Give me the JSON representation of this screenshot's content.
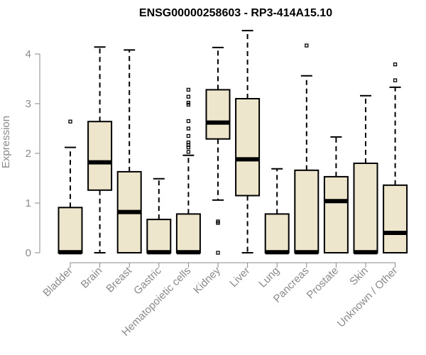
{
  "chart_data": {
    "type": "boxplot",
    "title": "ENSG00000258603 - RP3-414A15.10",
    "ylabel": "Expression",
    "xlabel": "",
    "ylim": [
      0,
      4.4
    ],
    "yticks": [
      0,
      1,
      2,
      3,
      4
    ],
    "box_fill": "#ede6cc",
    "categories": [
      "Bladder",
      "Brain",
      "Breast",
      "Gastric",
      "Hematopoietic cells",
      "Kidney",
      "Liver",
      "Lung",
      "Pancreas",
      "Prostate",
      "Skin",
      "Unknown / Other"
    ],
    "boxes": [
      {
        "min": 0,
        "q1": 0,
        "median": 0.01,
        "q3": 0.91,
        "max": 2.12,
        "outliers": [
          2.64
        ]
      },
      {
        "min": 0,
        "q1": 1.26,
        "median": 1.82,
        "q3": 2.64,
        "max": 4.14,
        "outliers": []
      },
      {
        "min": 0,
        "q1": 0,
        "median": 0.82,
        "q3": 1.63,
        "max": 4.08,
        "outliers": []
      },
      {
        "min": 0,
        "q1": 0,
        "median": 0.01,
        "q3": 0.67,
        "max": 1.49,
        "outliers": []
      },
      {
        "min": 0,
        "q1": 0,
        "median": 0.01,
        "q3": 0.78,
        "max": 1.96,
        "outliers": [
          2.03,
          2.12,
          2.17,
          2.22,
          2.35,
          2.5,
          2.65,
          2.98,
          3.02,
          3.14,
          3.28
        ]
      },
      {
        "min": 1.06,
        "q1": 2.29,
        "median": 2.62,
        "q3": 3.28,
        "max": 4.13,
        "outliers": [
          0.0,
          0.6,
          0.63
        ]
      },
      {
        "min": 0,
        "q1": 1.15,
        "median": 1.88,
        "q3": 3.1,
        "max": 4.47,
        "outliers": []
      },
      {
        "min": 0,
        "q1": 0,
        "median": 0.01,
        "q3": 0.78,
        "max": 1.69,
        "outliers": []
      },
      {
        "min": 0,
        "q1": 0,
        "median": 0.01,
        "q3": 1.66,
        "max": 3.56,
        "outliers": [
          4.17
        ]
      },
      {
        "min": 0,
        "q1": 0,
        "median": 1.04,
        "q3": 1.53,
        "max": 2.33,
        "outliers": []
      },
      {
        "min": 0,
        "q1": 0,
        "median": 0.01,
        "q3": 1.8,
        "max": 3.16,
        "outliers": []
      },
      {
        "min": 0,
        "q1": 0,
        "median": 0.4,
        "q3": 1.36,
        "max": 3.33,
        "outliers": [
          3.47,
          3.79
        ]
      }
    ]
  }
}
